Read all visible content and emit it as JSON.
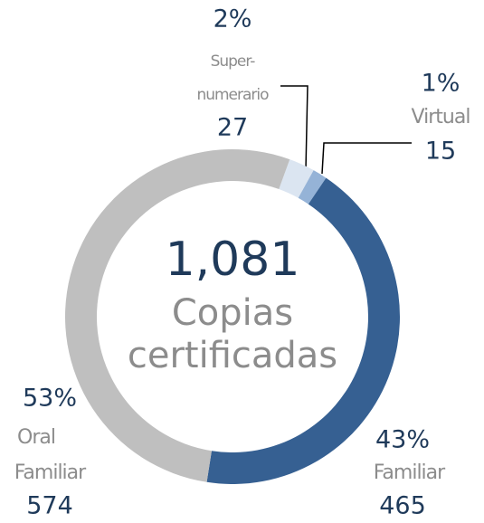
{
  "chart_data": {
    "type": "donut",
    "categories": [
      [
        "Super-",
        "numerario"
      ],
      [
        "Virtual"
      ],
      [
        "Familiar"
      ],
      [
        "Oral",
        "Familiar"
      ]
    ],
    "values": [
      27,
      15,
      465,
      574
    ],
    "percent": [
      2,
      1,
      43,
      53
    ],
    "percent_labels": [
      "2%",
      "1%",
      "43%",
      "53%"
    ],
    "colors": [
      "#dbe5f1",
      "#95b3d7",
      "#366092",
      "#bfbfbf"
    ],
    "total": 1081,
    "total_label": "1,081",
    "center_label": [
      "Copias",
      "certificadas"
    ]
  }
}
